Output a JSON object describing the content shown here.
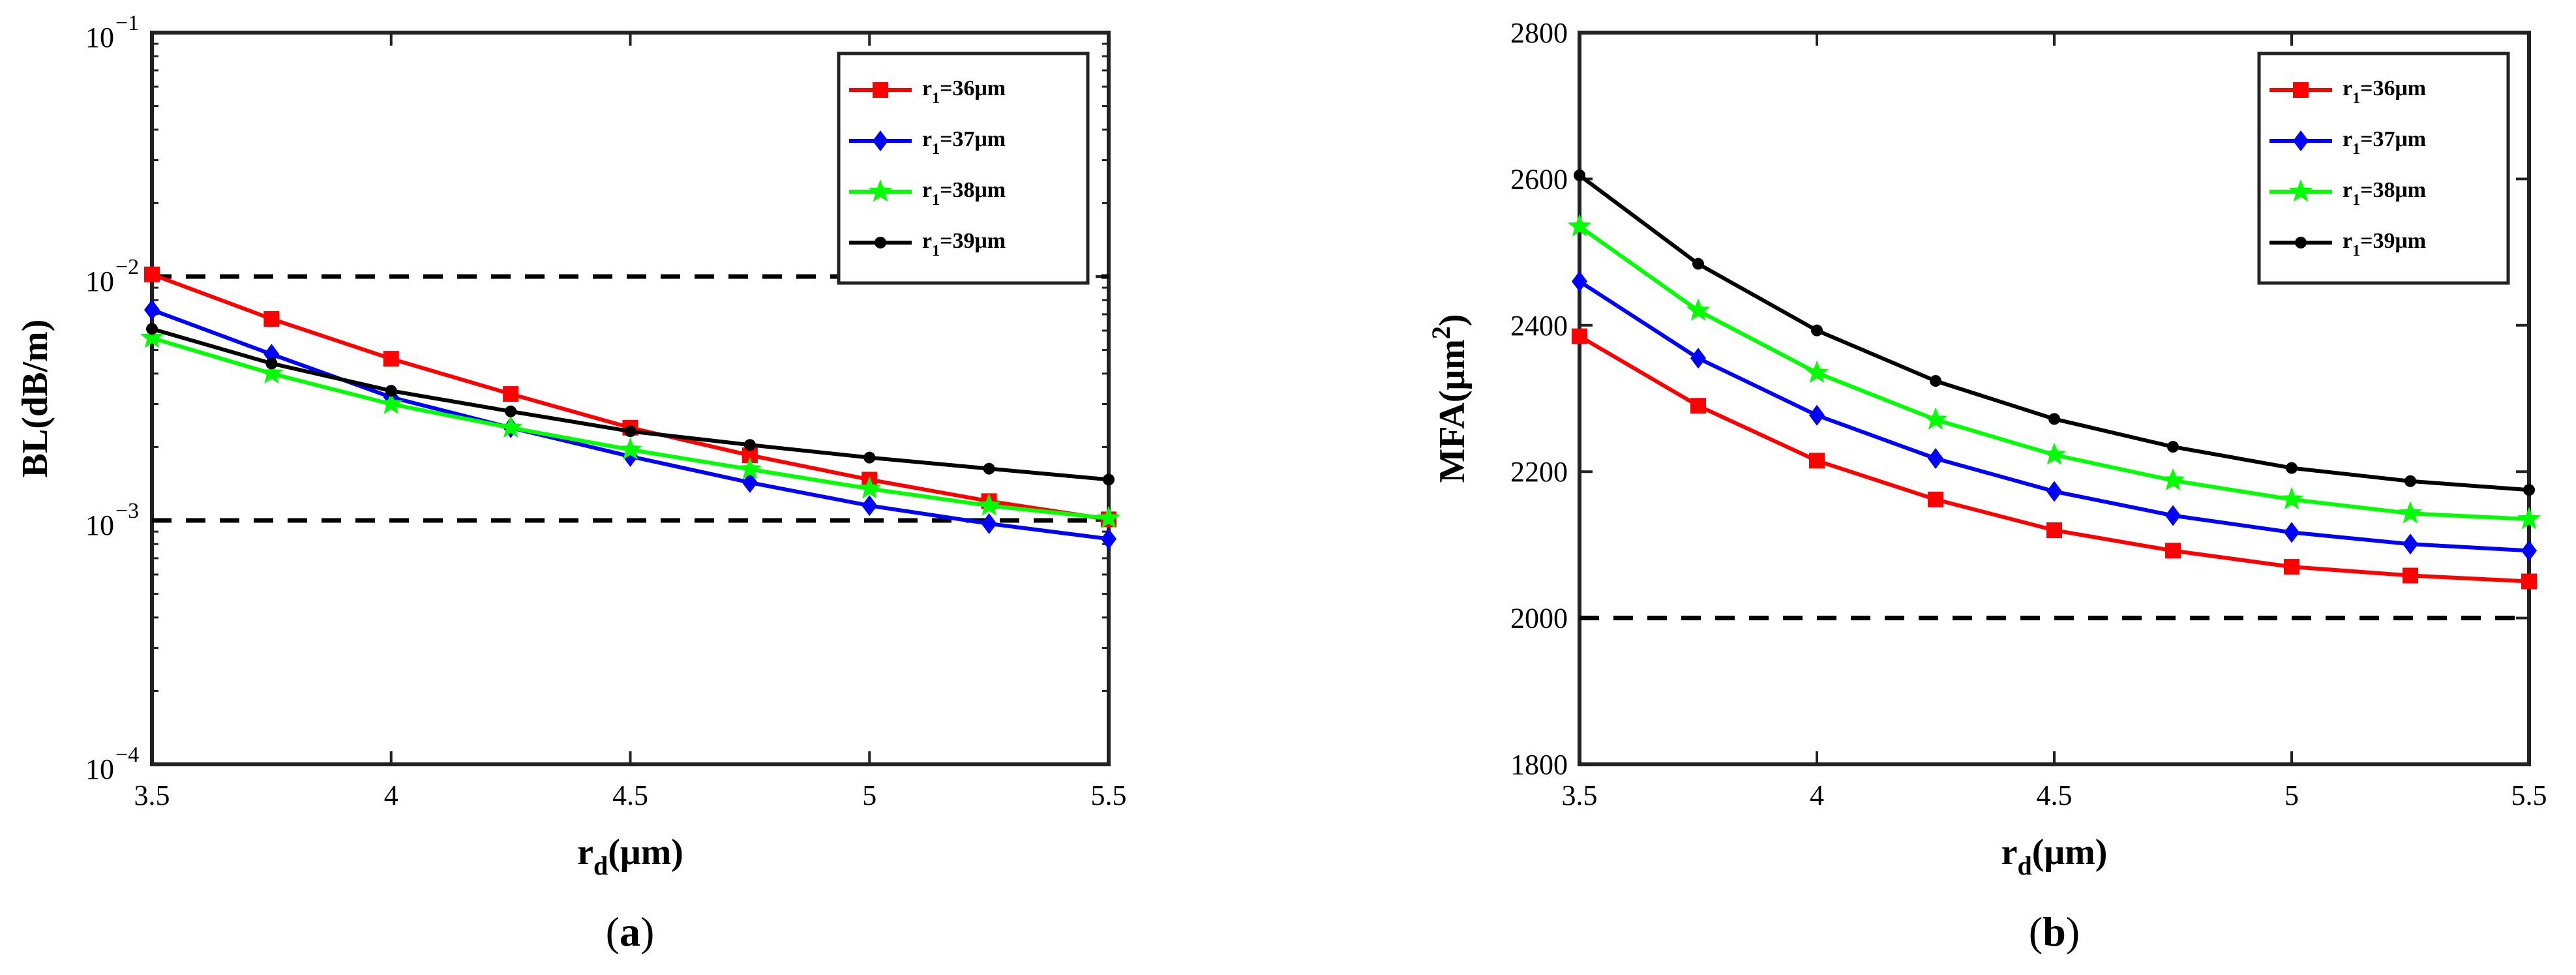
{
  "chart_data": [
    {
      "type": "line",
      "panel": "a",
      "caption_open": "(",
      "caption_letter": "a",
      "caption_close": ")",
      "yscale": "log",
      "xlabel_main": "r",
      "xlabel_sub": "d",
      "xlabel_rest": "(μm)",
      "ylabel": "BL(dB/m)",
      "xlim": [
        3.5,
        5.5
      ],
      "ylim": [
        0.0001,
        0.1
      ],
      "xticks": [
        3.5,
        4,
        4.5,
        5,
        5.5
      ],
      "xtick_labels": [
        "3.5",
        "4",
        "4.5",
        "5",
        "5.5"
      ],
      "ytick_labels": [
        {
          "base": "10",
          "exp": "−1"
        },
        {
          "base": "10",
          "exp": "−2"
        },
        {
          "base": "10",
          "exp": "−3"
        },
        {
          "base": "10",
          "exp": "−4"
        }
      ],
      "yticks": [
        0.1,
        0.01,
        0.001,
        0.0001
      ],
      "reference_lines": [
        0.01,
        0.001
      ],
      "legend_position": "top-right",
      "x": [
        3.5,
        3.75,
        4.0,
        4.25,
        4.5,
        4.75,
        5.0,
        5.25,
        5.5
      ],
      "series": [
        {
          "name": "r1=36μm",
          "label_main": "r",
          "label_sub": "1",
          "label_rest": "=36μm",
          "color": "#ff0000",
          "marker": "square",
          "values": [
            0.0102,
            0.0067,
            0.0046,
            0.0033,
            0.0024,
            0.00185,
            0.00147,
            0.0012,
            0.00101
          ]
        },
        {
          "name": "r1=37μm",
          "label_main": "r",
          "label_sub": "1",
          "label_rest": "=37μm",
          "color": "#0000ff",
          "marker": "diamond",
          "values": [
            0.0073,
            0.0048,
            0.0032,
            0.0024,
            0.00183,
            0.00143,
            0.00115,
            0.00097,
            0.00084
          ]
        },
        {
          "name": "r1=38μm",
          "label_main": "r",
          "label_sub": "1",
          "label_rest": "=38μm",
          "color": "#00ff00",
          "marker": "star",
          "values": [
            0.0056,
            0.004,
            0.003,
            0.0024,
            0.00195,
            0.00162,
            0.00135,
            0.00115,
            0.00102
          ]
        },
        {
          "name": "r1=39μm",
          "label_main": "r",
          "label_sub": "1",
          "label_rest": "=39μm",
          "color": "#000000",
          "marker": "circle",
          "values": [
            0.0061,
            0.0044,
            0.0034,
            0.0028,
            0.00232,
            0.00204,
            0.00181,
            0.00163,
            0.00147
          ]
        }
      ]
    },
    {
      "type": "line",
      "panel": "b",
      "caption_open": "(",
      "caption_letter": "b",
      "caption_close": ")",
      "yscale": "linear",
      "xlabel_main": "r",
      "xlabel_sub": "d",
      "xlabel_rest": "(μm)",
      "ylabel_main": "MFA(μm",
      "ylabel_sup": "2",
      "ylabel_close": ")",
      "xlim": [
        3.5,
        5.5
      ],
      "ylim": [
        1800,
        2800
      ],
      "xticks": [
        3.5,
        4,
        4.5,
        5,
        5.5
      ],
      "xtick_labels": [
        "3.5",
        "4",
        "4.5",
        "5",
        "5.5"
      ],
      "yticks": [
        1800,
        2000,
        2200,
        2400,
        2600,
        2800
      ],
      "ytick_labels": [
        "1800",
        "2000",
        "2200",
        "2400",
        "2600",
        "2800"
      ],
      "reference_lines": [
        2000
      ],
      "legend_position": "top-right",
      "x": [
        3.5,
        3.75,
        4.0,
        4.25,
        4.5,
        4.75,
        5.0,
        5.25,
        5.5
      ],
      "series": [
        {
          "name": "r1=36μm",
          "label_main": "r",
          "label_sub": "1",
          "label_rest": "=36μm",
          "color": "#ff0000",
          "marker": "square",
          "values": [
            2385,
            2290,
            2215,
            2162,
            2120,
            2092,
            2070,
            2058,
            2050
          ]
        },
        {
          "name": "r1=37μm",
          "label_main": "r",
          "label_sub": "1",
          "label_rest": "=37μm",
          "color": "#0000ff",
          "marker": "diamond",
          "values": [
            2460,
            2355,
            2277,
            2218,
            2173,
            2140,
            2117,
            2101,
            2092
          ]
        },
        {
          "name": "r1=38μm",
          "label_main": "r",
          "label_sub": "1",
          "label_rest": "=38μm",
          "color": "#00ff00",
          "marker": "star",
          "values": [
            2535,
            2420,
            2335,
            2271,
            2223,
            2188,
            2162,
            2143,
            2135
          ]
        },
        {
          "name": "r1=39μm",
          "label_main": "r",
          "label_sub": "1",
          "label_rest": "=39μm",
          "color": "#000000",
          "marker": "circle",
          "values": [
            2605,
            2484,
            2393,
            2324,
            2272,
            2234,
            2205,
            2187,
            2175
          ]
        }
      ]
    }
  ]
}
